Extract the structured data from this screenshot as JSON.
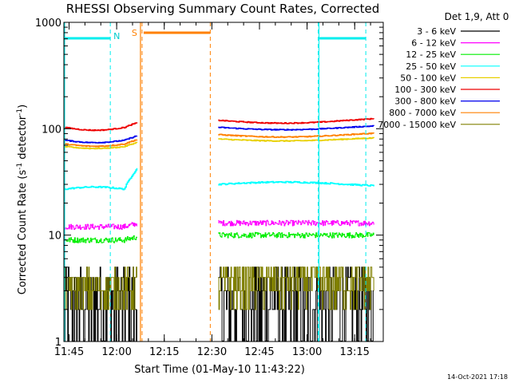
{
  "chart_data": {
    "type": "line",
    "title": "RHESSI Observing Summary Count Rates, Corrected",
    "xlabel": "Start Time (01-May-10 11:43:22)",
    "ylabel_main": "Corrected Count Rate (s",
    "ylabel_sup1": "-1",
    "ylabel_mid": " detector",
    "ylabel_sup2": "-1",
    "ylabel_end": ")",
    "y_scale": "log",
    "ylim": [
      1,
      1000
    ],
    "xlim": [
      "11:43:22",
      "13:24:00"
    ],
    "x_ticks": [
      "11:45",
      "12:00",
      "12:15",
      "12:30",
      "12:45",
      "13:00",
      "13:15"
    ],
    "y_ticks": [
      "1",
      "10",
      "100",
      "1000"
    ],
    "footer_date": "14-Oct-2021 17:18",
    "legend": {
      "header": "Det 1,9, Att 0",
      "position": "right"
    },
    "series": [
      {
        "name": "3 - 6 keV",
        "color": "#000000",
        "level": 2.5,
        "level2": 2.5,
        "trend": 0.0,
        "noise": 0.35,
        "style": "bursty"
      },
      {
        "name": "6 - 12 keV",
        "color": "#ff00ff",
        "level": 12,
        "level2": 13,
        "trend": 0.0,
        "noise": 0.06,
        "style": "noisy"
      },
      {
        "name": "12 - 25 keV",
        "color": "#00ee00",
        "level": 9,
        "level2": 10,
        "trend": 0.0,
        "noise": 0.06,
        "style": "noisy"
      },
      {
        "name": "25 - 50 keV",
        "color": "#00ffff",
        "level": 27,
        "level2": 30,
        "trend": 0.05,
        "noise": 0.015,
        "style": "smooth"
      },
      {
        "name": "50 - 100 keV",
        "color": "#e8d000",
        "level": 68,
        "level2": 80,
        "trend": -0.04,
        "noise": 0.01,
        "style": "smooth"
      },
      {
        "name": "100 - 300 keV",
        "color": "#ee0000",
        "level": 103,
        "level2": 120,
        "trend": -0.06,
        "noise": 0.01,
        "style": "smooth"
      },
      {
        "name": "300 - 800 keV",
        "color": "#0000ee",
        "level": 78,
        "level2": 103,
        "trend": -0.05,
        "noise": 0.01,
        "style": "smooth"
      },
      {
        "name": "800 - 7000 keV",
        "color": "#ff8000",
        "level": 72,
        "level2": 88,
        "trend": -0.05,
        "noise": 0.01,
        "style": "smooth"
      },
      {
        "name": "7000 - 15000 keV",
        "color": "#808000",
        "level": 3.2,
        "level2": 3.6,
        "trend": 0.0,
        "noise": 0.15,
        "style": "bursty"
      }
    ],
    "gaps": {
      "first_segment": [
        "11:43:22",
        "12:06:30"
      ],
      "second_segment": [
        "12:32:00",
        "13:21:00"
      ]
    },
    "annotations": {
      "n_label": "N",
      "s_label": "S",
      "night_bars": [
        [
          "11:43:22",
          "11:58:00"
        ],
        [
          "13:03:30",
          "13:18:30"
        ]
      ],
      "saa_bar": [
        "12:08:30",
        "12:29:30"
      ],
      "n_line_times": [
        "11:58:00",
        "13:03:30",
        "13:18:30"
      ],
      "saa_line_times": [
        "12:08:00",
        "12:29:30"
      ],
      "cyan_solid_times": [
        "11:43:22",
        "13:03:30"
      ],
      "orange_solid_time": "12:07:30"
    }
  }
}
